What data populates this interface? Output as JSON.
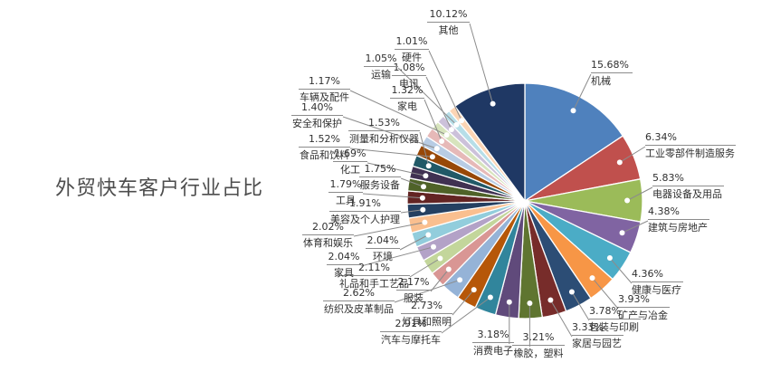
{
  "title": "外贸快车客户行业占比",
  "chart_data": {
    "type": "pie",
    "unit": "%",
    "start_angle": "top",
    "direction": "clockwise",
    "legend_position": "callout-labels",
    "slices": [
      {
        "label": "机械",
        "value": 15.68,
        "color": "#4F81BD"
      },
      {
        "label": "工业零部件制造服务",
        "value": 6.34,
        "color": "#C0504D"
      },
      {
        "label": "电器设备及用品",
        "value": 5.83,
        "color": "#9BBB59"
      },
      {
        "label": "建筑与房地产",
        "value": 4.38,
        "color": "#8064A2"
      },
      {
        "label": "健康与医疗",
        "value": 4.36,
        "color": "#4BACC6"
      },
      {
        "label": "矿产与冶金",
        "value": 3.93,
        "color": "#F79646"
      },
      {
        "label": "包装与印刷",
        "value": 3.78,
        "color": "#2C4D75"
      },
      {
        "label": "家居与园艺",
        "value": 3.33,
        "color": "#772C2A"
      },
      {
        "label": "橡胶，塑料",
        "value": 3.21,
        "color": "#5F7530"
      },
      {
        "label": "消费电子",
        "value": 3.18,
        "color": "#604A7B"
      },
      {
        "label": "汽车与摩托车",
        "value": 2.91,
        "color": "#31859C"
      },
      {
        "label": "灯具和照明",
        "value": 2.73,
        "color": "#B65708"
      },
      {
        "label": "纺织及皮革制品",
        "value": 2.62,
        "color": "#95B3D7"
      },
      {
        "label": "服装",
        "value": 2.17,
        "color": "#D99694"
      },
      {
        "label": "礼品和手工艺品",
        "value": 2.11,
        "color": "#C3D69B"
      },
      {
        "label": "家具",
        "value": 2.04,
        "color": "#B3A2C7"
      },
      {
        "label": "环境",
        "value": 2.04,
        "color": "#92CDDC"
      },
      {
        "label": "体育和娱乐",
        "value": 2.02,
        "color": "#FABF8F"
      },
      {
        "label": "美容及个人护理",
        "value": 1.91,
        "color": "#254061"
      },
      {
        "label": "工具",
        "value": 1.79,
        "color": "#632423"
      },
      {
        "label": "服务设备",
        "value": 1.75,
        "color": "#4F6228"
      },
      {
        "label": "化工",
        "value": 1.69,
        "color": "#403152"
      },
      {
        "label": "测量和分析仪器",
        "value": 1.53,
        "color": "#215967"
      },
      {
        "label": "食品和饮料",
        "value": 1.52,
        "color": "#984807"
      },
      {
        "label": "安全和保护",
        "value": 1.4,
        "color": "#B8CCE4"
      },
      {
        "label": "家电",
        "value": 1.32,
        "color": "#E6B9B8"
      },
      {
        "label": "车辆及配件",
        "value": 1.17,
        "color": "#D7E4BD"
      },
      {
        "label": "电讯",
        "value": 1.08,
        "color": "#CCC1DA"
      },
      {
        "label": "运输",
        "value": 1.05,
        "color": "#B7DEE8"
      },
      {
        "label": "硬件",
        "value": 1.01,
        "color": "#FCD5B5"
      },
      {
        "label": "其他",
        "value": 10.12,
        "color": "#1F3864"
      }
    ]
  }
}
